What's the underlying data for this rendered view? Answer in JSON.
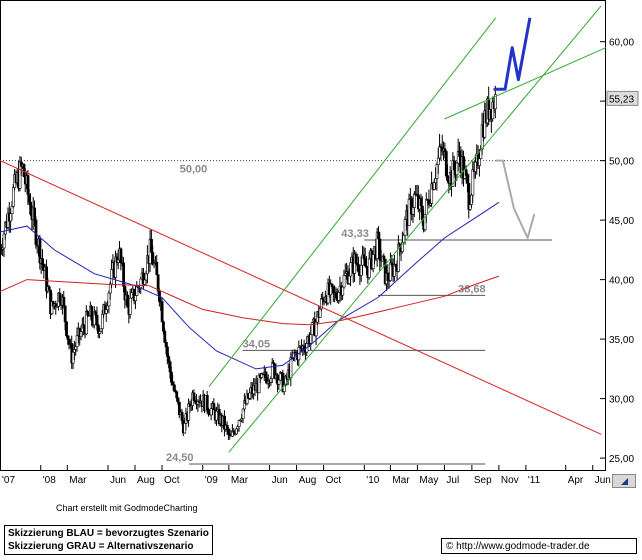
{
  "chart_data": {
    "type": "candlestick",
    "ylim": [
      24.0,
      63.5
    ],
    "y_ticks": [
      "60,00",
      "55,00",
      "50,00",
      "45,00",
      "40,00",
      "35,00",
      "30,00",
      "25,00"
    ],
    "y_tick_values": [
      60,
      55,
      50,
      45,
      40,
      35,
      30,
      25
    ],
    "x_ticks": [
      "'07",
      "'08",
      "Mar",
      "Jun",
      "Aug",
      "Oct",
      "'09",
      "Mar",
      "Jun",
      "Aug",
      "Oct",
      "'10",
      "Mar",
      "May",
      "Jul",
      "Sep",
      "Nov",
      "'11",
      "Apr",
      "Jun"
    ],
    "x_tick_dates": [
      "2007-10-01",
      "2008-01-01",
      "2008-03-01",
      "2008-06-01",
      "2008-08-01",
      "2008-10-01",
      "2009-01-01",
      "2009-03-01",
      "2009-06-01",
      "2009-08-01",
      "2009-10-01",
      "2010-01-01",
      "2010-03-01",
      "2010-05-01",
      "2010-07-01",
      "2010-09-01",
      "2010-11-01",
      "2011-01-01",
      "2011-04-01",
      "2011-06-01"
    ],
    "x_range": [
      "2007-10-01",
      "2011-07-01"
    ],
    "last_price": "55,23",
    "last_price_value": 55.23,
    "levels": [
      {
        "label": "50,00",
        "value": 50.0,
        "from": "2007-10-01",
        "to": "2011-07-01",
        "style": "dotted"
      },
      {
        "label": "43,33",
        "value": 43.33,
        "from": "2010-01-01",
        "to": "2011-03-01",
        "style": "solid"
      },
      {
        "label": "38,68",
        "value": 38.68,
        "from": "2010-02-01",
        "to": "2010-10-01",
        "style": "solid"
      },
      {
        "label": "34,05",
        "value": 34.05,
        "from": "2009-04-01",
        "to": "2010-10-01",
        "style": "solid"
      },
      {
        "label": "24,50",
        "value": 24.5,
        "from": "2008-12-01",
        "to": "2010-10-01",
        "style": "solid"
      }
    ],
    "price_path": [
      [
        "2007-10-01",
        42.6
      ],
      [
        "2007-11-01",
        47.5
      ],
      [
        "2007-11-20",
        49.5
      ],
      [
        "2007-12-15",
        45.0
      ],
      [
        "2008-01-10",
        40.5
      ],
      [
        "2008-01-25",
        37.5
      ],
      [
        "2008-02-15",
        39.0
      ],
      [
        "2008-03-10",
        33.5
      ],
      [
        "2008-03-25",
        35.0
      ],
      [
        "2008-04-20",
        37.0
      ],
      [
        "2008-05-15",
        36.0
      ],
      [
        "2008-06-05",
        39.5
      ],
      [
        "2008-06-25",
        42.5
      ],
      [
        "2008-07-15",
        37.5
      ],
      [
        "2008-08-15",
        40.0
      ],
      [
        "2008-09-05",
        42.5
      ],
      [
        "2008-09-25",
        39.0
      ],
      [
        "2008-10-15",
        33.0
      ],
      [
        "2008-11-01",
        30.0
      ],
      [
        "2008-11-20",
        27.5
      ],
      [
        "2008-12-10",
        30.5
      ],
      [
        "2009-01-10",
        29.5
      ],
      [
        "2009-02-15",
        28.0
      ],
      [
        "2009-03-05",
        26.5
      ],
      [
        "2009-03-25",
        28.5
      ],
      [
        "2009-04-20",
        30.5
      ],
      [
        "2009-05-15",
        31.5
      ],
      [
        "2009-06-10",
        32.5
      ],
      [
        "2009-07-05",
        31.0
      ],
      [
        "2009-07-25",
        33.5
      ],
      [
        "2009-08-20",
        34.5
      ],
      [
        "2009-09-10",
        36.0
      ],
      [
        "2009-10-05",
        39.0
      ],
      [
        "2009-10-25",
        38.5
      ],
      [
        "2009-11-15",
        40.0
      ],
      [
        "2009-12-10",
        41.5
      ],
      [
        "2010-01-10",
        41.0
      ],
      [
        "2010-01-30",
        43.0
      ],
      [
        "2010-02-20",
        40.0
      ],
      [
        "2010-03-15",
        41.5
      ],
      [
        "2010-04-05",
        45.0
      ],
      [
        "2010-04-25",
        47.0
      ],
      [
        "2010-05-15",
        45.0
      ],
      [
        "2010-06-05",
        48.5
      ],
      [
        "2010-06-25",
        51.0
      ],
      [
        "2010-07-15",
        48.5
      ],
      [
        "2010-08-05",
        50.5
      ],
      [
        "2010-08-25",
        47.0
      ],
      [
        "2010-09-10",
        49.0
      ],
      [
        "2010-09-25",
        53.0
      ],
      [
        "2010-10-10",
        54.5
      ],
      [
        "2010-10-25",
        55.23
      ]
    ],
    "moving_averages": [
      {
        "color": "#2222bb",
        "points": [
          [
            "2007-10-01",
            44.0
          ],
          [
            "2007-12-01",
            44.5
          ],
          [
            "2008-02-01",
            42.5
          ],
          [
            "2008-05-01",
            40.5
          ],
          [
            "2008-08-01",
            39.5
          ],
          [
            "2008-10-01",
            38.5
          ],
          [
            "2008-12-01",
            36.0
          ],
          [
            "2009-02-01",
            34.0
          ],
          [
            "2009-05-01",
            32.5
          ],
          [
            "2009-07-01",
            32.8
          ],
          [
            "2009-09-01",
            34.5
          ],
          [
            "2009-11-01",
            36.5
          ],
          [
            "2010-02-01",
            38.5
          ],
          [
            "2010-05-01",
            41.5
          ],
          [
            "2010-07-01",
            43.5
          ],
          [
            "2010-09-01",
            45.0
          ],
          [
            "2010-11-01",
            46.5
          ]
        ]
      },
      {
        "color": "#cc2222",
        "points": [
          [
            "2007-10-01",
            39.0
          ],
          [
            "2007-12-01",
            40.0
          ],
          [
            "2008-03-01",
            39.8
          ],
          [
            "2008-06-01",
            39.6
          ],
          [
            "2008-09-01",
            39.5
          ],
          [
            "2008-11-01",
            38.5
          ],
          [
            "2009-01-01",
            37.5
          ],
          [
            "2009-04-01",
            36.8
          ],
          [
            "2009-07-01",
            36.3
          ],
          [
            "2009-09-01",
            36.2
          ],
          [
            "2009-11-01",
            36.5
          ],
          [
            "2010-01-01",
            37.0
          ],
          [
            "2010-04-01",
            37.8
          ],
          [
            "2010-07-01",
            38.6
          ],
          [
            "2010-09-01",
            39.5
          ],
          [
            "2010-11-01",
            40.3
          ]
        ]
      }
    ],
    "trend_lines": [
      {
        "color": "#dd2222",
        "from": [
          "2007-10-01",
          50.0
        ],
        "to": [
          "2011-06-20",
          27.0
        ]
      },
      {
        "color": "#33aa33",
        "from": [
          "2009-03-01",
          25.5
        ],
        "to": [
          "2011-06-20",
          63.0
        ]
      },
      {
        "color": "#33aa33",
        "from": [
          "2009-01-15",
          31.0
        ],
        "to": [
          "2010-10-25",
          62.0
        ]
      },
      {
        "color": "#33aa33",
        "from": [
          "2010-07-01",
          53.5
        ],
        "to": [
          "2011-07-01",
          59.5
        ]
      }
    ],
    "scenarios": [
      {
        "name": "Skizzierung BLAU = bevorzugtes Szenario",
        "color": "#2233cc",
        "points": [
          [
            "2010-10-20",
            56.0
          ],
          [
            "2010-11-15",
            56.0
          ],
          [
            "2010-12-01",
            59.5
          ],
          [
            "2010-12-15",
            56.8
          ],
          [
            "2011-01-10",
            62.0
          ]
        ]
      },
      {
        "name": "Skizzierung GRAU = Alternativszenario",
        "color": "#aaaaaa",
        "points": [
          [
            "2010-10-25",
            50.0
          ],
          [
            "2010-11-10",
            50.0
          ],
          [
            "2010-12-05",
            46.0
          ],
          [
            "2011-01-05",
            43.5
          ],
          [
            "2011-01-20",
            45.5
          ]
        ]
      }
    ]
  },
  "footer": {
    "credit": "Chart erstellt mit GodmodeCharting",
    "legend_blue": "Skizzierung BLAU = bevorzugtes Szenario",
    "legend_gray": "Skizzierung GRAU = Alternativszenario",
    "copyright": "© http://www.godmode-trader.de"
  }
}
